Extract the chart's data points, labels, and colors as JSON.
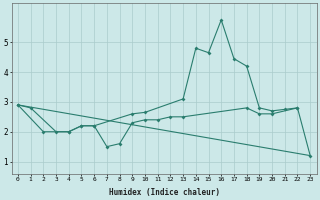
{
  "xlabel": "Humidex (Indice chaleur)",
  "x_values": [
    0,
    1,
    2,
    3,
    4,
    5,
    6,
    7,
    8,
    9,
    10,
    11,
    12,
    13,
    14,
    15,
    16,
    17,
    18,
    19,
    20,
    21,
    22,
    23
  ],
  "line1": [
    2.9,
    2.8,
    null,
    2.0,
    2.0,
    2.2,
    2.2,
    null,
    null,
    2.6,
    2.65,
    null,
    null,
    3.1,
    4.8,
    4.65,
    5.75,
    4.45,
    4.2,
    2.8,
    2.7,
    2.75,
    2.8,
    null
  ],
  "line2": [
    2.9,
    null,
    2.0,
    null,
    2.0,
    2.2,
    2.2,
    1.5,
    1.6,
    2.3,
    2.4,
    2.4,
    2.5,
    2.5,
    null,
    null,
    null,
    null,
    2.8,
    2.6,
    2.6,
    null,
    2.8,
    1.2
  ],
  "line3": [
    [
      0,
      2.9
    ],
    [
      23,
      1.2
    ]
  ],
  "color": "#2a7d6e",
  "bg_color": "#cce8e8",
  "grid_color": "#aacccc",
  "ylim": [
    0.6,
    6.3
  ],
  "xlim": [
    -0.5,
    23.5
  ],
  "yticks": [
    1,
    2,
    3,
    4,
    5
  ],
  "xticks": [
    0,
    1,
    2,
    3,
    4,
    5,
    6,
    7,
    8,
    9,
    10,
    11,
    12,
    13,
    14,
    15,
    16,
    17,
    18,
    19,
    20,
    21,
    22,
    23
  ]
}
